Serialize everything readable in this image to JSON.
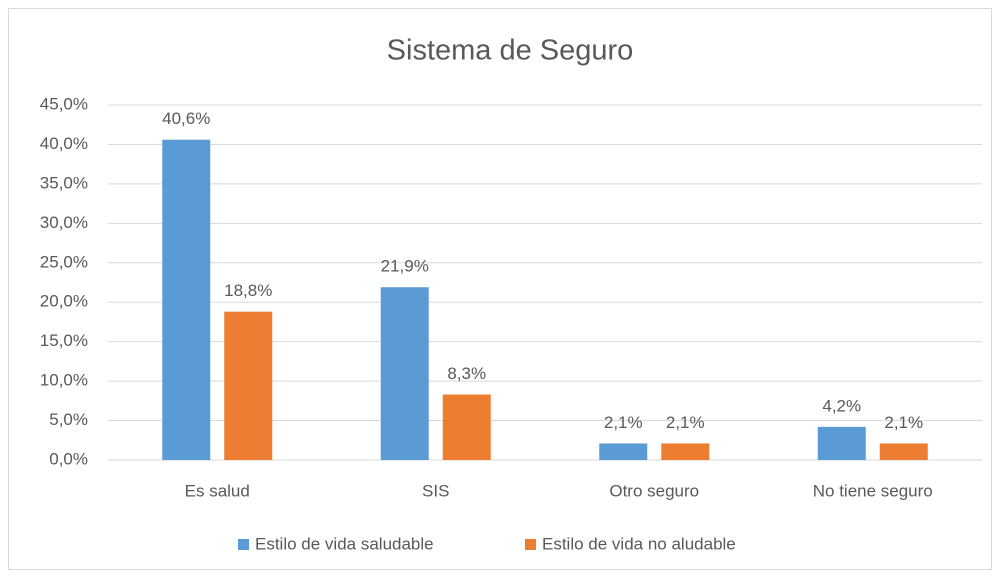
{
  "chart_data": {
    "type": "bar",
    "title": "Sistema de Seguro",
    "categories": [
      "Es salud",
      "SIS",
      "Otro seguro",
      "No tiene seguro"
    ],
    "series": [
      {
        "name": "Estilo de vida saludable",
        "color": "#5b9bd5",
        "values": [
          40.6,
          21.9,
          2.1,
          4.2
        ],
        "value_labels": [
          "40,6%",
          "21,9%",
          "2,1%",
          "4,2%"
        ]
      },
      {
        "name": "Estilo de vida no aludable",
        "color": "#ed7d31",
        "values": [
          18.8,
          8.3,
          2.1,
          2.1
        ],
        "value_labels": [
          "18,8%",
          "8,3%",
          "2,1%",
          "2,1%"
        ]
      }
    ],
    "ylim": [
      0,
      45
    ],
    "yticks": [
      {
        "value": 0,
        "label": "0,0%"
      },
      {
        "value": 5,
        "label": "5,0%"
      },
      {
        "value": 10,
        "label": "10,0%"
      },
      {
        "value": 15,
        "label": "15,0%"
      },
      {
        "value": 20,
        "label": "20,0%"
      },
      {
        "value": 25,
        "label": "25,0%"
      },
      {
        "value": 30,
        "label": "30,0%"
      },
      {
        "value": 35,
        "label": "35,0%"
      },
      {
        "value": 40,
        "label": "40,0%"
      },
      {
        "value": 45,
        "label": "45,0%"
      }
    ],
    "grid": true,
    "legend": "bottom"
  }
}
